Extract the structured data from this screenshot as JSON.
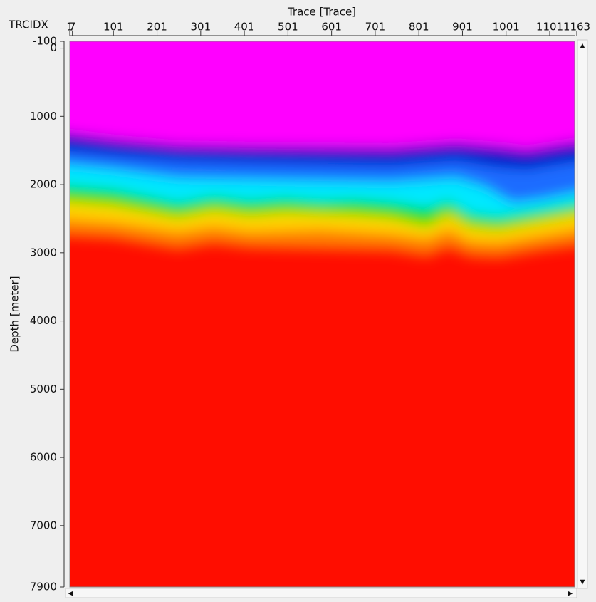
{
  "chart_data": {
    "type": "heatmap",
    "x_label": "Trace [Trace]",
    "x_axis_name": "TRCIDX",
    "y_label": "Depth [meter]",
    "xlim": [
      1,
      1163
    ],
    "xticks": [
      1,
      7,
      101,
      201,
      301,
      401,
      501,
      601,
      701,
      801,
      901,
      1001,
      1101,
      1163
    ],
    "ylim": [
      -100,
      7900
    ],
    "y_inverted": true,
    "yticks": [
      -100,
      0,
      1000,
      2000,
      3000,
      4000,
      5000,
      6000,
      7000,
      7900
    ]
  }
}
